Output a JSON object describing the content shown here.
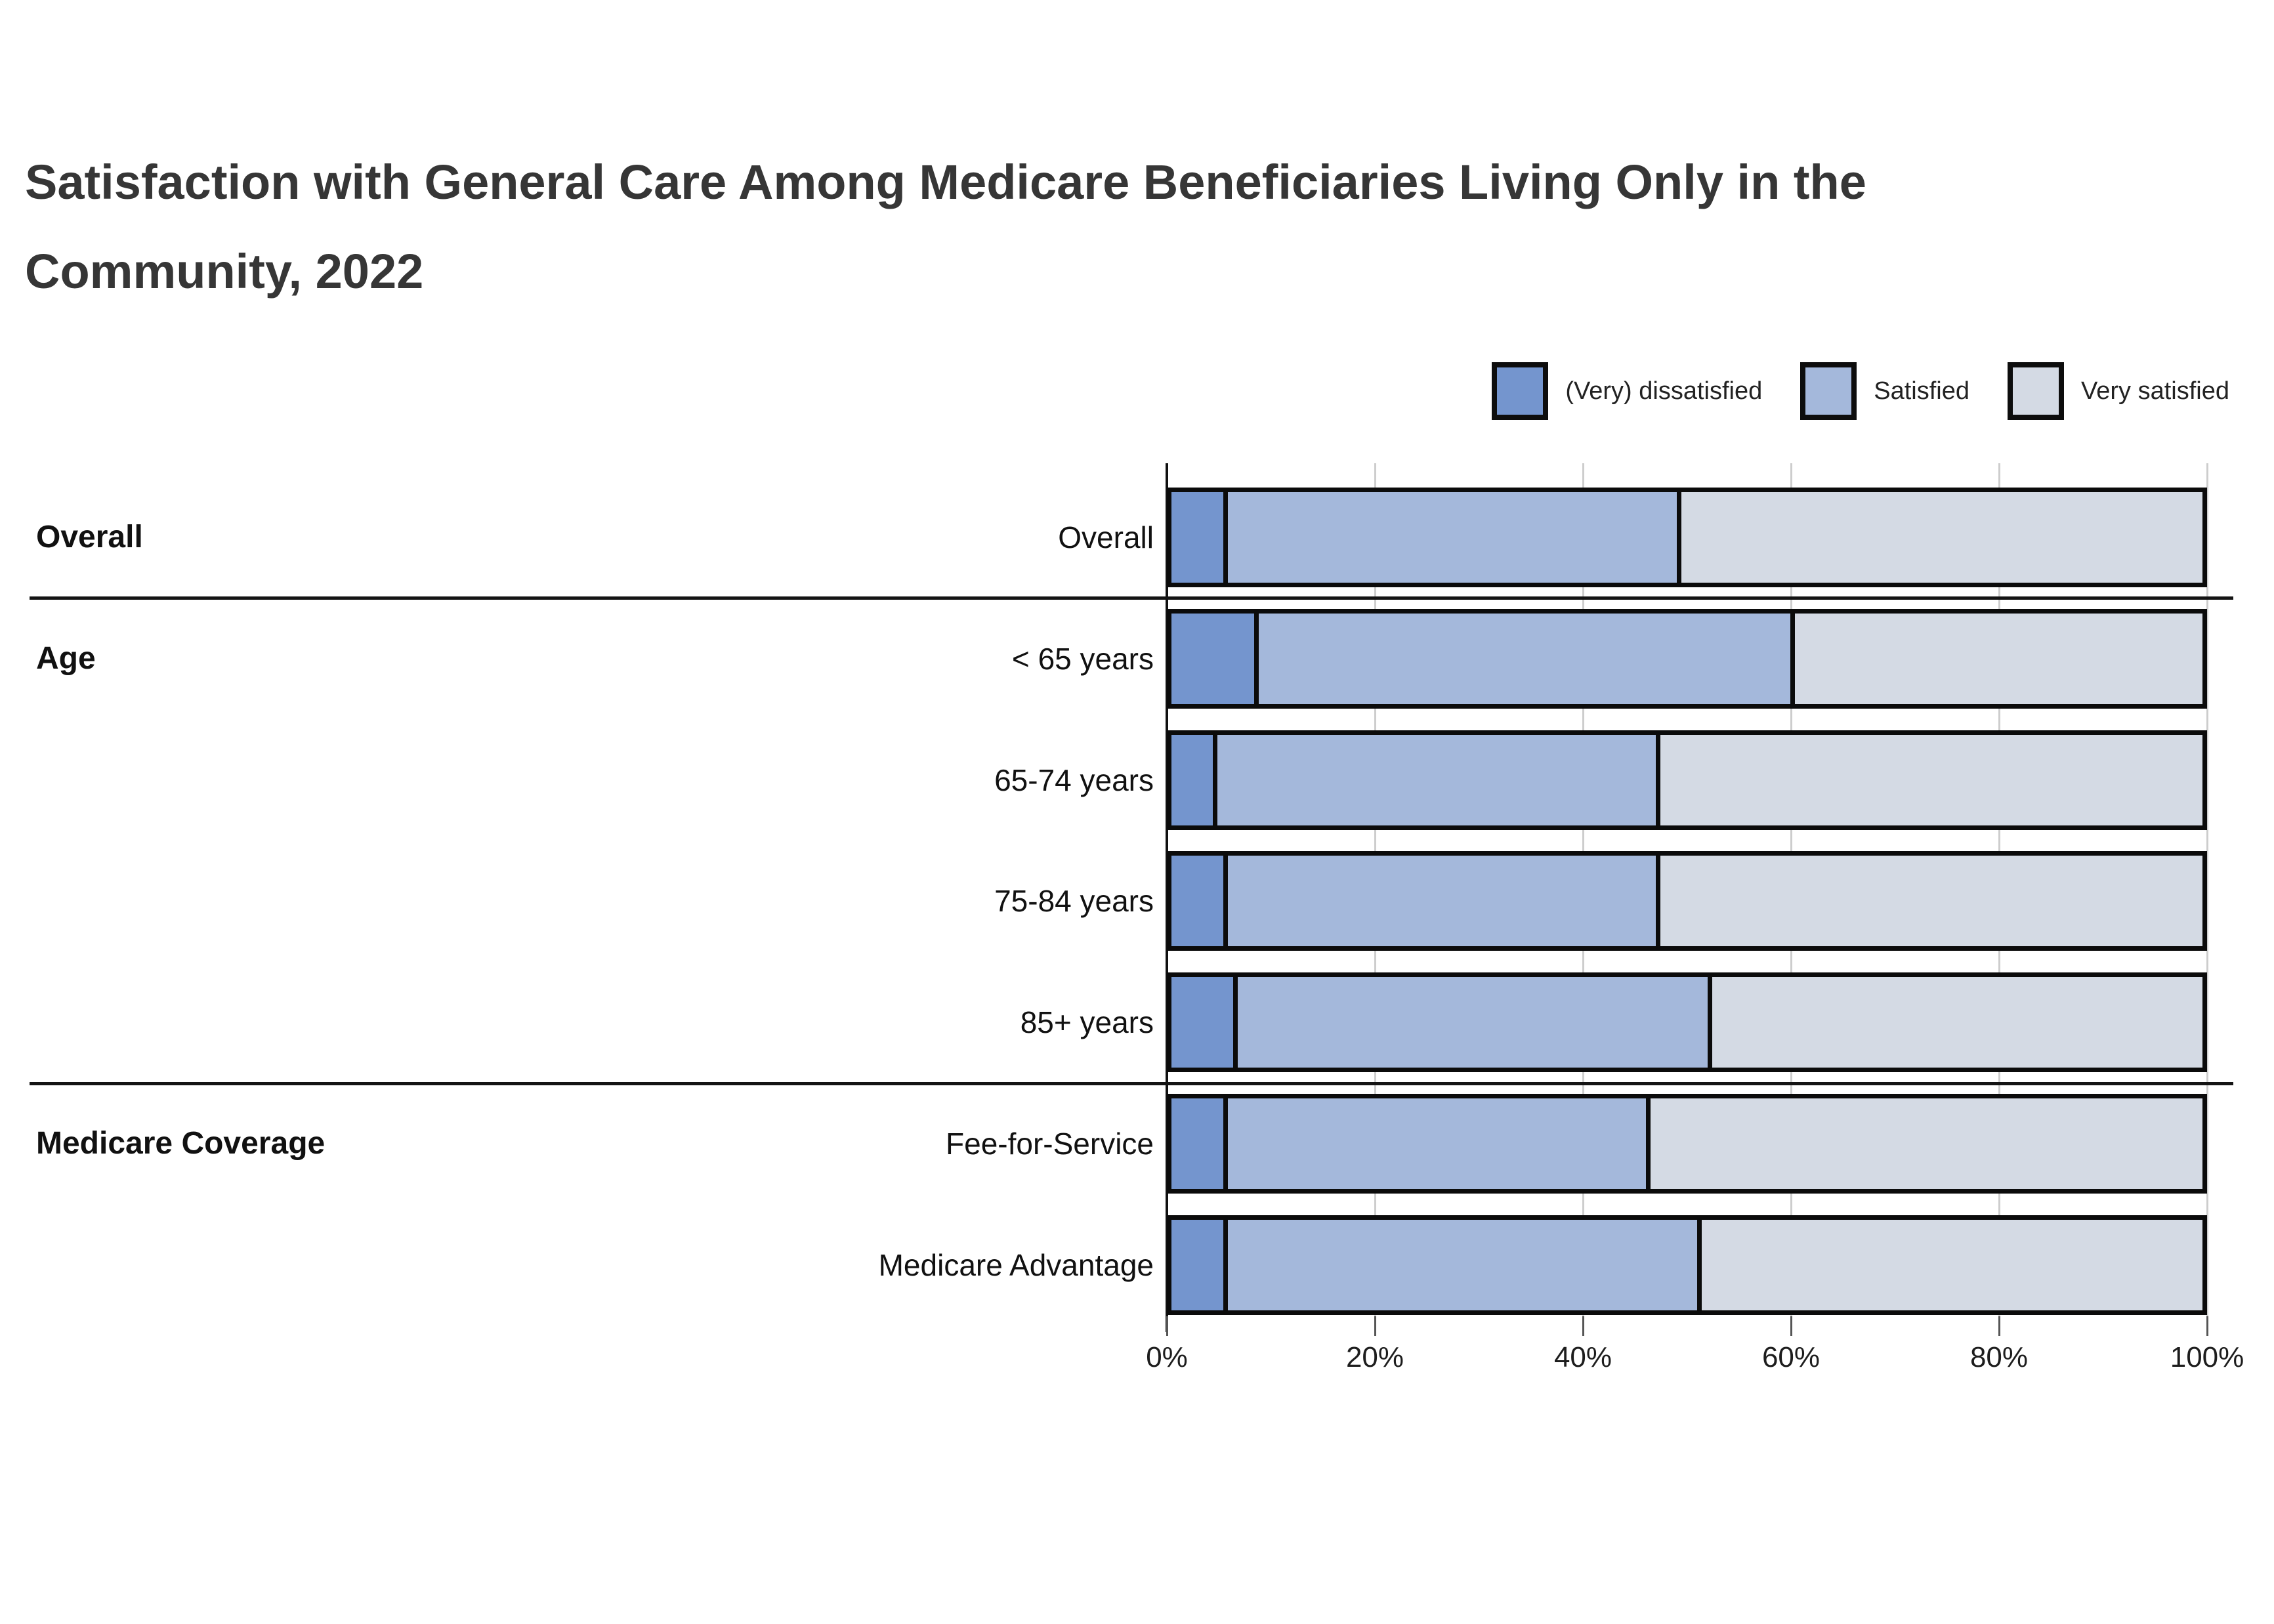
{
  "title_lines": [
    "Satisfaction with General Care Among Medicare Beneficiaries Living Only in the",
    "Community, 2022"
  ],
  "chart_data": {
    "type": "bar",
    "stacked": true,
    "orientation": "horizontal",
    "title": "Satisfaction with General Care Among Medicare Beneficiaries Living Only in the Community, 2022",
    "categories": [
      "Overall",
      "< 65 years",
      "65-74 years",
      "75-84 years",
      "85+ years",
      "Fee-for-Service",
      "Medicare Advantage"
    ],
    "groups": [
      {
        "label": "Overall",
        "first_row": 0,
        "last_row": 0
      },
      {
        "label": "Age",
        "first_row": 1,
        "last_row": 4
      },
      {
        "label": "Medicare Coverage",
        "first_row": 5,
        "last_row": 6
      }
    ],
    "series": [
      {
        "name": "(Very) dissatisfied",
        "color": "#7495ce",
        "values": [
          5,
          8,
          4,
          5,
          6,
          5,
          5
        ]
      },
      {
        "name": "Satisfied",
        "color": "#a4b8db",
        "values": [
          44,
          52,
          43,
          42,
          46,
          41,
          46
        ]
      },
      {
        "name": "Very satisfied",
        "color": "#d4dae4",
        "values": [
          51,
          40,
          53,
          53,
          48,
          54,
          49
        ]
      }
    ],
    "x_ticks": [
      "0%",
      "20%",
      "40%",
      "60%",
      "80%",
      "100%"
    ],
    "x_tick_values": [
      0,
      20,
      40,
      60,
      80,
      100
    ],
    "xlim": [
      0,
      100
    ],
    "grid": true,
    "legend_position": "top-right",
    "axis_color": "#111111",
    "gridline_color": "#cdcdcd",
    "bar_border_color": "#0b0b0b",
    "title_color": "#363636"
  }
}
